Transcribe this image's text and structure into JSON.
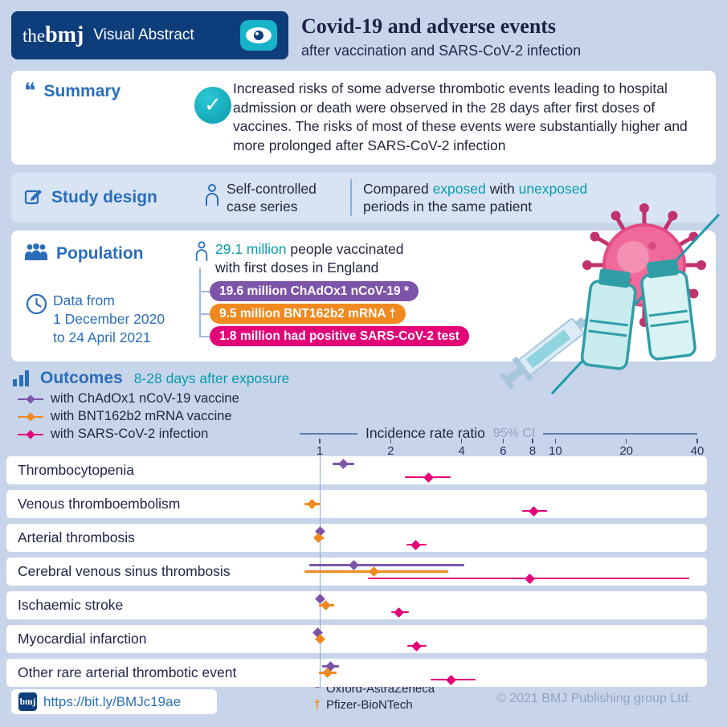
{
  "colors": {
    "background": "#c7d4ea",
    "navy": "#0e3d7b",
    "section_blue": "#2a6ebb",
    "teal": "#0a9bae",
    "purple": "#7d55a8",
    "orange": "#f0891f",
    "magenta": "#e20177",
    "gray": "#94a3bd"
  },
  "header": {
    "logo_the": "the",
    "logo_bmj": "bmj",
    "brand_label": "Visual Abstract",
    "title": "Covid-19 and adverse events",
    "subtitle": "after vaccination and SARS-CoV-2 infection"
  },
  "icons": {
    "quote": "❝",
    "check": "✓"
  },
  "summary": {
    "heading": "Summary",
    "text": "Increased risks of some adverse thrombotic events leading to hospital admission or death were observed in the 28 days after first doses of vaccines. The risks of most of these events were substantially higher and more prolonged after SARS-CoV-2 infection"
  },
  "study_design": {
    "heading": "Study design",
    "method_line1": "Self-controlled",
    "method_line2": "case series",
    "compare_prefix": "Compared ",
    "exposed": "exposed",
    "compare_middle": " with ",
    "unexposed": "unexposed",
    "compare_line2": "periods in the same patient"
  },
  "population": {
    "heading": "Population",
    "date_line1": "Data from",
    "date_line2": "1 December 2020",
    "date_line3": "to 24 April 2021",
    "vaccinated_highlight": "29.1 million",
    "vaccinated_rest": " people vaccinated",
    "vaccinated_line2": "with first doses in England",
    "pills": [
      {
        "label": "19.6 million ChAdOx1 nCoV-19 *",
        "color": "#7d55a8"
      },
      {
        "label": "9.5 million BNT162b2 mRNA †",
        "color": "#f0891f"
      },
      {
        "label": "1.8 million had positive SARS-CoV-2 test",
        "color": "#e20177"
      }
    ]
  },
  "outcomes": {
    "heading": "Outcomes",
    "subheading": "8-28 days after exposure",
    "legend": [
      {
        "key": "chadox",
        "label": "with ChAdOx1 nCoV-19 vaccine",
        "color": "#7d55a8"
      },
      {
        "key": "bnt",
        "label": "with BNT162b2 mRNA vaccine",
        "color": "#f0891f"
      },
      {
        "key": "sars",
        "label": "with SARS-CoV-2 infection",
        "color": "#e20177"
      }
    ]
  },
  "chart_data": {
    "type": "scatter",
    "subtype": "forest-plot",
    "title": "Incidence rate ratio",
    "ci_label": "95% CI",
    "x_scale": "log",
    "x_ticks": [
      1,
      2,
      4,
      6,
      8,
      10,
      20,
      40
    ],
    "x_range": [
      0.8,
      40
    ],
    "series_keys": [
      "chadox",
      "bnt",
      "sars"
    ],
    "series_names": {
      "chadox": "ChAdOx1 nCoV-19 vaccine",
      "bnt": "BNT162b2 mRNA vaccine",
      "sars": "SARS-CoV-2 infection"
    },
    "rows": [
      {
        "label": "Thrombocytopenia",
        "chadox": {
          "v": 1.26,
          "lo": 1.13,
          "hi": 1.4
        },
        "bnt": null,
        "sars": {
          "v": 2.9,
          "lo": 2.3,
          "hi": 3.6
        }
      },
      {
        "label": "Venous thromboembolism",
        "chadox": null,
        "bnt": {
          "v": 0.93,
          "lo": 0.86,
          "hi": 1.01
        },
        "sars": {
          "v": 8.1,
          "lo": 7.2,
          "hi": 9.2
        }
      },
      {
        "label": "Arterial thrombosis",
        "chadox": {
          "v": 1.0,
          "lo": 0.96,
          "hi": 1.05
        },
        "bnt": {
          "v": 0.99,
          "lo": 0.95,
          "hi": 1.04
        },
        "sars": {
          "v": 2.55,
          "lo": 2.33,
          "hi": 2.83
        }
      },
      {
        "label": "Cerebral venous sinus thrombosis",
        "chadox": {
          "v": 1.4,
          "lo": 0.9,
          "hi": 4.1
        },
        "bnt": {
          "v": 1.7,
          "lo": 0.86,
          "hi": 3.5
        },
        "sars": {
          "v": 7.8,
          "lo": 1.6,
          "hi": 37
        }
      },
      {
        "label": "Ischaemic stroke",
        "chadox": {
          "v": 1.0,
          "lo": 0.96,
          "hi": 1.04
        },
        "bnt": {
          "v": 1.06,
          "lo": 0.99,
          "hi": 1.15
        },
        "sars": {
          "v": 2.17,
          "lo": 2.01,
          "hi": 2.39
        }
      },
      {
        "label": "Myocardial infarction",
        "chadox": {
          "v": 0.98,
          "lo": 0.94,
          "hi": 1.02
        },
        "bnt": {
          "v": 1.0,
          "lo": 0.96,
          "hi": 1.05
        },
        "sars": {
          "v": 2.58,
          "lo": 2.35,
          "hi": 2.85
        }
      },
      {
        "label": "Other rare arterial thrombotic event",
        "chadox": {
          "v": 1.11,
          "lo": 1.02,
          "hi": 1.21
        },
        "bnt": {
          "v": 1.08,
          "lo": 0.99,
          "hi": 1.18
        },
        "sars": {
          "v": 3.6,
          "lo": 2.95,
          "hi": 4.6
        }
      }
    ]
  },
  "footer": {
    "logo": "bmj",
    "link": "https://bit.ly/BMJc19ae",
    "footnotes": [
      {
        "symbol": "*",
        "label": "Oxford-AstraZeneca",
        "color": "#7d55a8"
      },
      {
        "symbol": "†",
        "label": "Pfizer-BioNTech",
        "color": "#f0891f"
      }
    ],
    "copyright": "© 2021 BMJ Publishing group Ltd."
  }
}
